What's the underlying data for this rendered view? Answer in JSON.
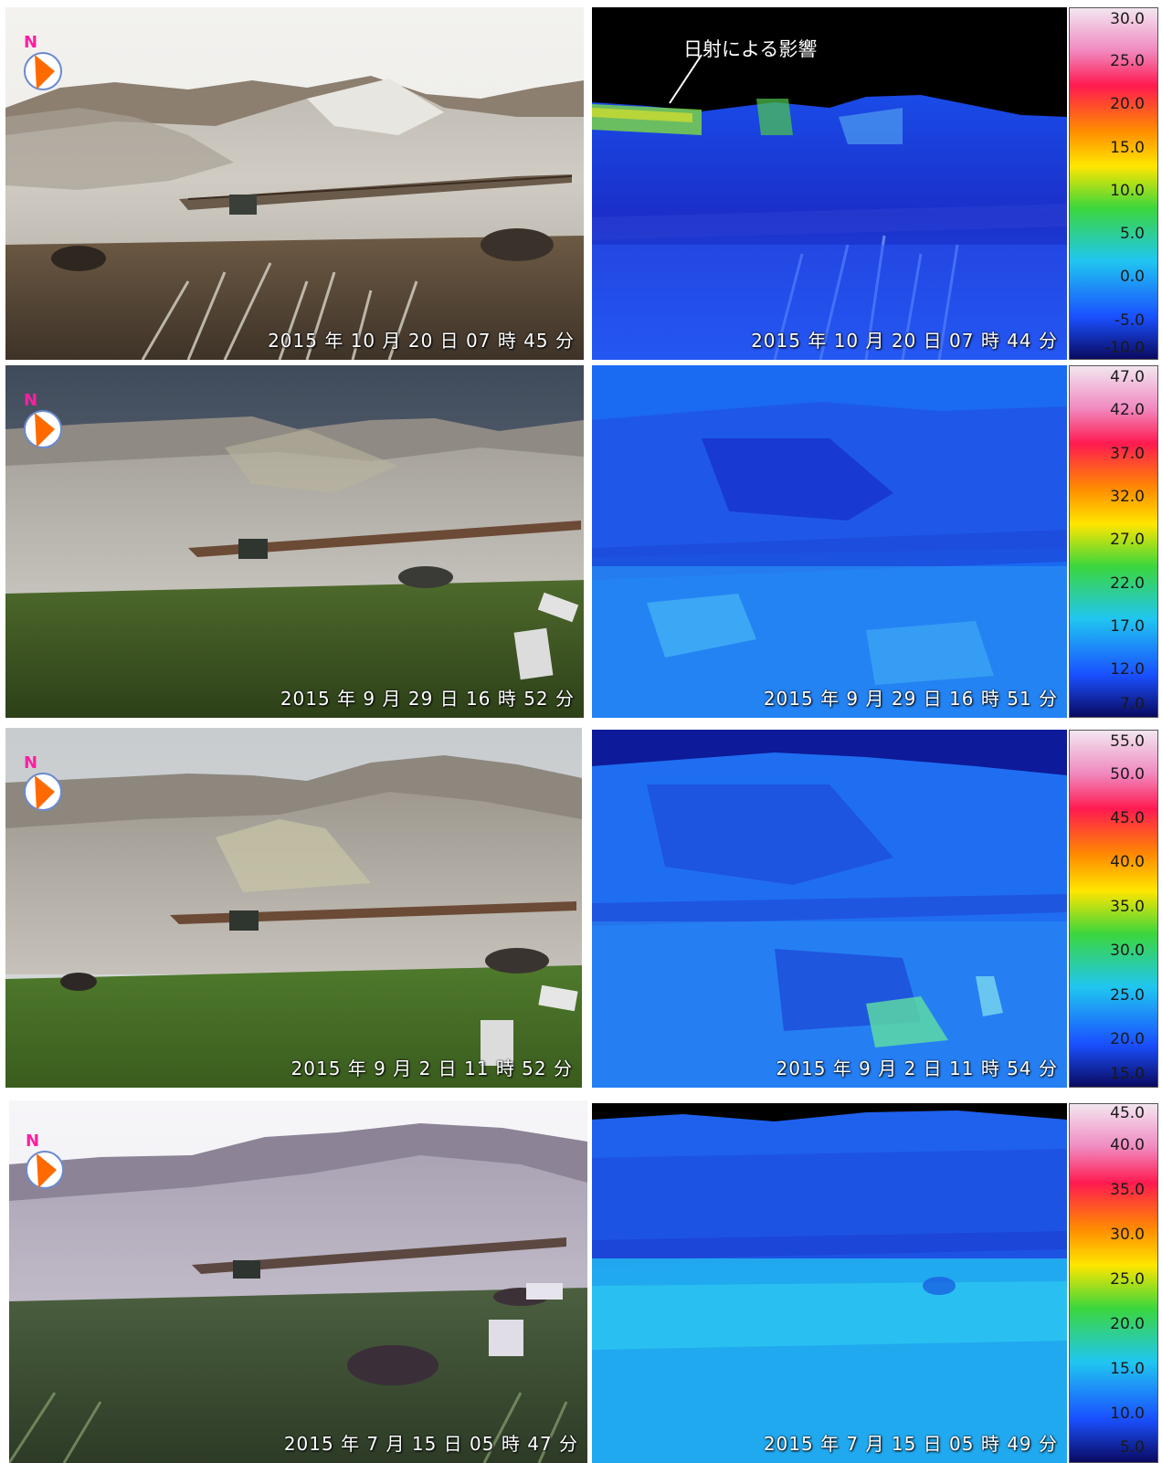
{
  "annotation": "日射による影響",
  "compass_label": "N",
  "rows": [
    {
      "photo_caption": "2015 年 10 月 20 日 07 時 45 分",
      "thermal_caption": "2015 年 10 月 20 日 07 時 44 分",
      "scale_ticks": [
        "30.0",
        "25.0",
        "20.0",
        "15.0",
        "10.0",
        "5.0",
        "0.0",
        "-5.0",
        "-10.0"
      ]
    },
    {
      "photo_caption": "2015 年 9 月 29 日 16 時 52 分",
      "thermal_caption": "2015 年 9 月 29 日 16 時 51 分",
      "scale_ticks": [
        "47.0",
        "42.0",
        "37.0",
        "32.0",
        "27.0",
        "22.0",
        "17.0",
        "12.0",
        "7.0"
      ]
    },
    {
      "photo_caption": "2015 年 9 月 2 日 11 時 52 分",
      "thermal_caption": "2015 年 9 月 2 日 11 時 54 分",
      "scale_ticks": [
        "55.0",
        "50.0",
        "45.0",
        "40.0",
        "35.0",
        "30.0",
        "25.0",
        "20.0",
        "15.0"
      ]
    },
    {
      "photo_caption": "2015 年 7 月 15 日 05 時 47 分",
      "thermal_caption": "2015 年 7 月 15 日 05 時 49 分",
      "scale_ticks": [
        "45.0",
        "40.0",
        "35.0",
        "30.0",
        "25.0",
        "20.0",
        "15.0",
        "10.0",
        "5.0"
      ]
    }
  ],
  "colors": {
    "compass_orange": "#ff6a00",
    "compass_n": "#ff1fa0",
    "thermal_blue": "#1a5cff",
    "thermal_cyan": "#2fc4f2",
    "thermal_sky_night": "#04071c"
  }
}
